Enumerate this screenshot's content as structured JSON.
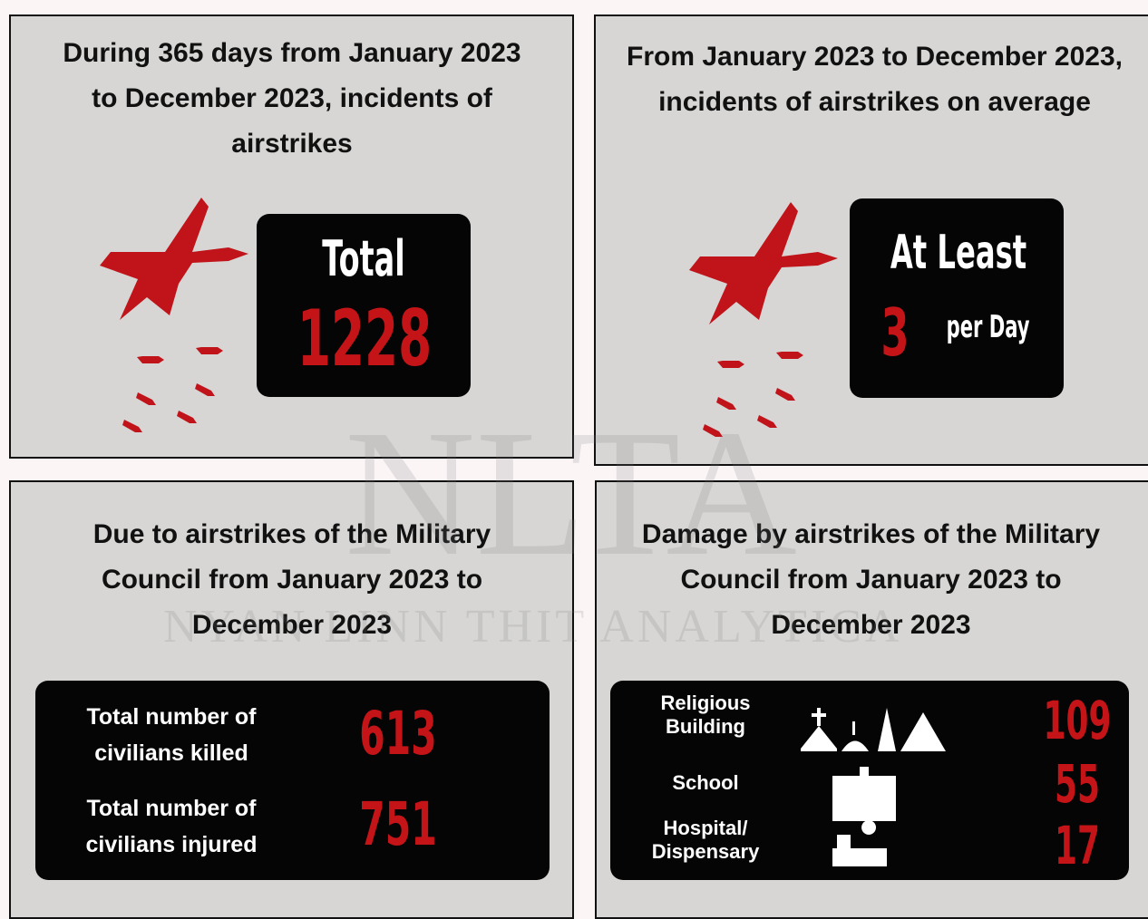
{
  "watermark": {
    "logo": "NLTA",
    "name": "NYAN LINN THIT ANALYTICA"
  },
  "panels": [
    {
      "title": "During 365 days from January 2023 to December 2023, incidents of airstrikes",
      "label": "Total",
      "value": 1228
    },
    {
      "title": "From January 2023 to December 2023, incidents of airstrikes on average",
      "label": "At Least",
      "value": 3,
      "unit": "per Day"
    },
    {
      "title": "Due to airstrikes of the Military Council from January 2023 to December 2023",
      "rows": [
        {
          "label": "Total number of civilians killed",
          "value": 613
        },
        {
          "label": "Total number of civilians injured",
          "value": 751
        }
      ]
    },
    {
      "title": "Damage by airstrikes of the Military Council from January 2023 to December 2023",
      "rows": [
        {
          "label": "Religious Building",
          "value": 109
        },
        {
          "label": "School",
          "value": 55
        },
        {
          "label": "Hospital/ Dispensary",
          "value": 17
        }
      ]
    }
  ]
}
